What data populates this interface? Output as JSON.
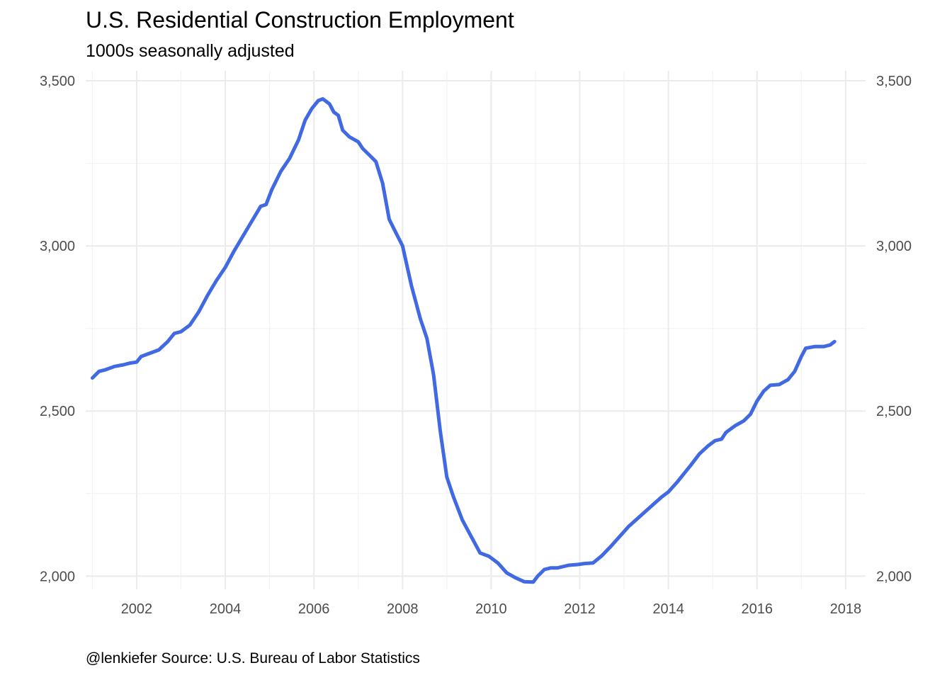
{
  "chart_data": {
    "type": "line",
    "title": "U.S. Residential Construction Employment",
    "subtitle": "1000s seasonally adjusted",
    "caption": "@lenkiefer Source: U.S. Bureau of Labor Statistics",
    "xlabel": "",
    "ylabel": "",
    "xlim": [
      2000.85,
      2018.45
    ],
    "ylim": [
      1960,
      3530
    ],
    "x_ticks": [
      2002,
      2004,
      2006,
      2008,
      2010,
      2012,
      2014,
      2016,
      2018
    ],
    "x_tick_labels": [
      "2002",
      "2004",
      "2006",
      "2008",
      "2010",
      "2012",
      "2014",
      "2016",
      "2018"
    ],
    "x_minor_ticks": [
      2001,
      2003,
      2005,
      2007,
      2009,
      2011,
      2013,
      2015,
      2017
    ],
    "y_ticks": [
      2000,
      2500,
      3000,
      3500
    ],
    "y_tick_labels": [
      "2,000",
      "2,500",
      "3,000",
      "3,500"
    ],
    "y_minor_ticks": [
      2250,
      2750,
      3250
    ],
    "y_axis_both_sides": true,
    "grid": true,
    "series": [
      {
        "color": "#4169e1",
        "x": [
          2001.0,
          2001.15,
          2001.3,
          2001.5,
          2001.7,
          2001.85,
          2002.0,
          2002.1,
          2002.3,
          2002.5,
          2002.7,
          2002.85,
          2003.0,
          2003.2,
          2003.4,
          2003.6,
          2003.8,
          2004.0,
          2004.2,
          2004.4,
          2004.6,
          2004.8,
          2004.92,
          2005.05,
          2005.25,
          2005.45,
          2005.65,
          2005.8,
          2005.95,
          2006.1,
          2006.2,
          2006.35,
          2006.45,
          2006.55,
          2006.65,
          2006.8,
          2007.0,
          2007.1,
          2007.25,
          2007.4,
          2007.55,
          2007.7,
          2007.85,
          2008.0,
          2008.2,
          2008.4,
          2008.55,
          2008.7,
          2008.85,
          2009.0,
          2009.15,
          2009.35,
          2009.55,
          2009.75,
          2009.95,
          2010.15,
          2010.35,
          2010.55,
          2010.75,
          2010.95,
          2011.05,
          2011.2,
          2011.35,
          2011.5,
          2011.75,
          2011.95,
          2012.1,
          2012.3,
          2012.5,
          2012.7,
          2012.9,
          2013.1,
          2013.35,
          2013.6,
          2013.85,
          2014.0,
          2014.2,
          2014.35,
          2014.5,
          2014.7,
          2014.9,
          2015.05,
          2015.2,
          2015.3,
          2015.5,
          2015.7,
          2015.85,
          2016.0,
          2016.15,
          2016.3,
          2016.5,
          2016.7,
          2016.85,
          2017.0,
          2017.1,
          2017.3,
          2017.5,
          2017.65,
          2017.75
        ],
        "y": [
          2600,
          2620,
          2625,
          2635,
          2640,
          2645,
          2648,
          2665,
          2675,
          2685,
          2710,
          2735,
          2740,
          2760,
          2800,
          2850,
          2895,
          2935,
          2985,
          3030,
          3075,
          3120,
          3125,
          3170,
          3225,
          3265,
          3320,
          3380,
          3415,
          3440,
          3445,
          3430,
          3405,
          3395,
          3350,
          3330,
          3315,
          3295,
          3275,
          3255,
          3190,
          3080,
          3040,
          3000,
          2880,
          2780,
          2720,
          2610,
          2440,
          2300,
          2240,
          2170,
          2120,
          2070,
          2060,
          2040,
          2010,
          1995,
          1983,
          1982,
          2000,
          2020,
          2025,
          2025,
          2033,
          2035,
          2038,
          2040,
          2062,
          2090,
          2120,
          2150,
          2180,
          2210,
          2240,
          2255,
          2285,
          2310,
          2335,
          2370,
          2395,
          2410,
          2415,
          2435,
          2455,
          2470,
          2490,
          2530,
          2560,
          2578,
          2580,
          2595,
          2620,
          2665,
          2690,
          2695,
          2695,
          2700,
          2710
        ]
      }
    ]
  }
}
